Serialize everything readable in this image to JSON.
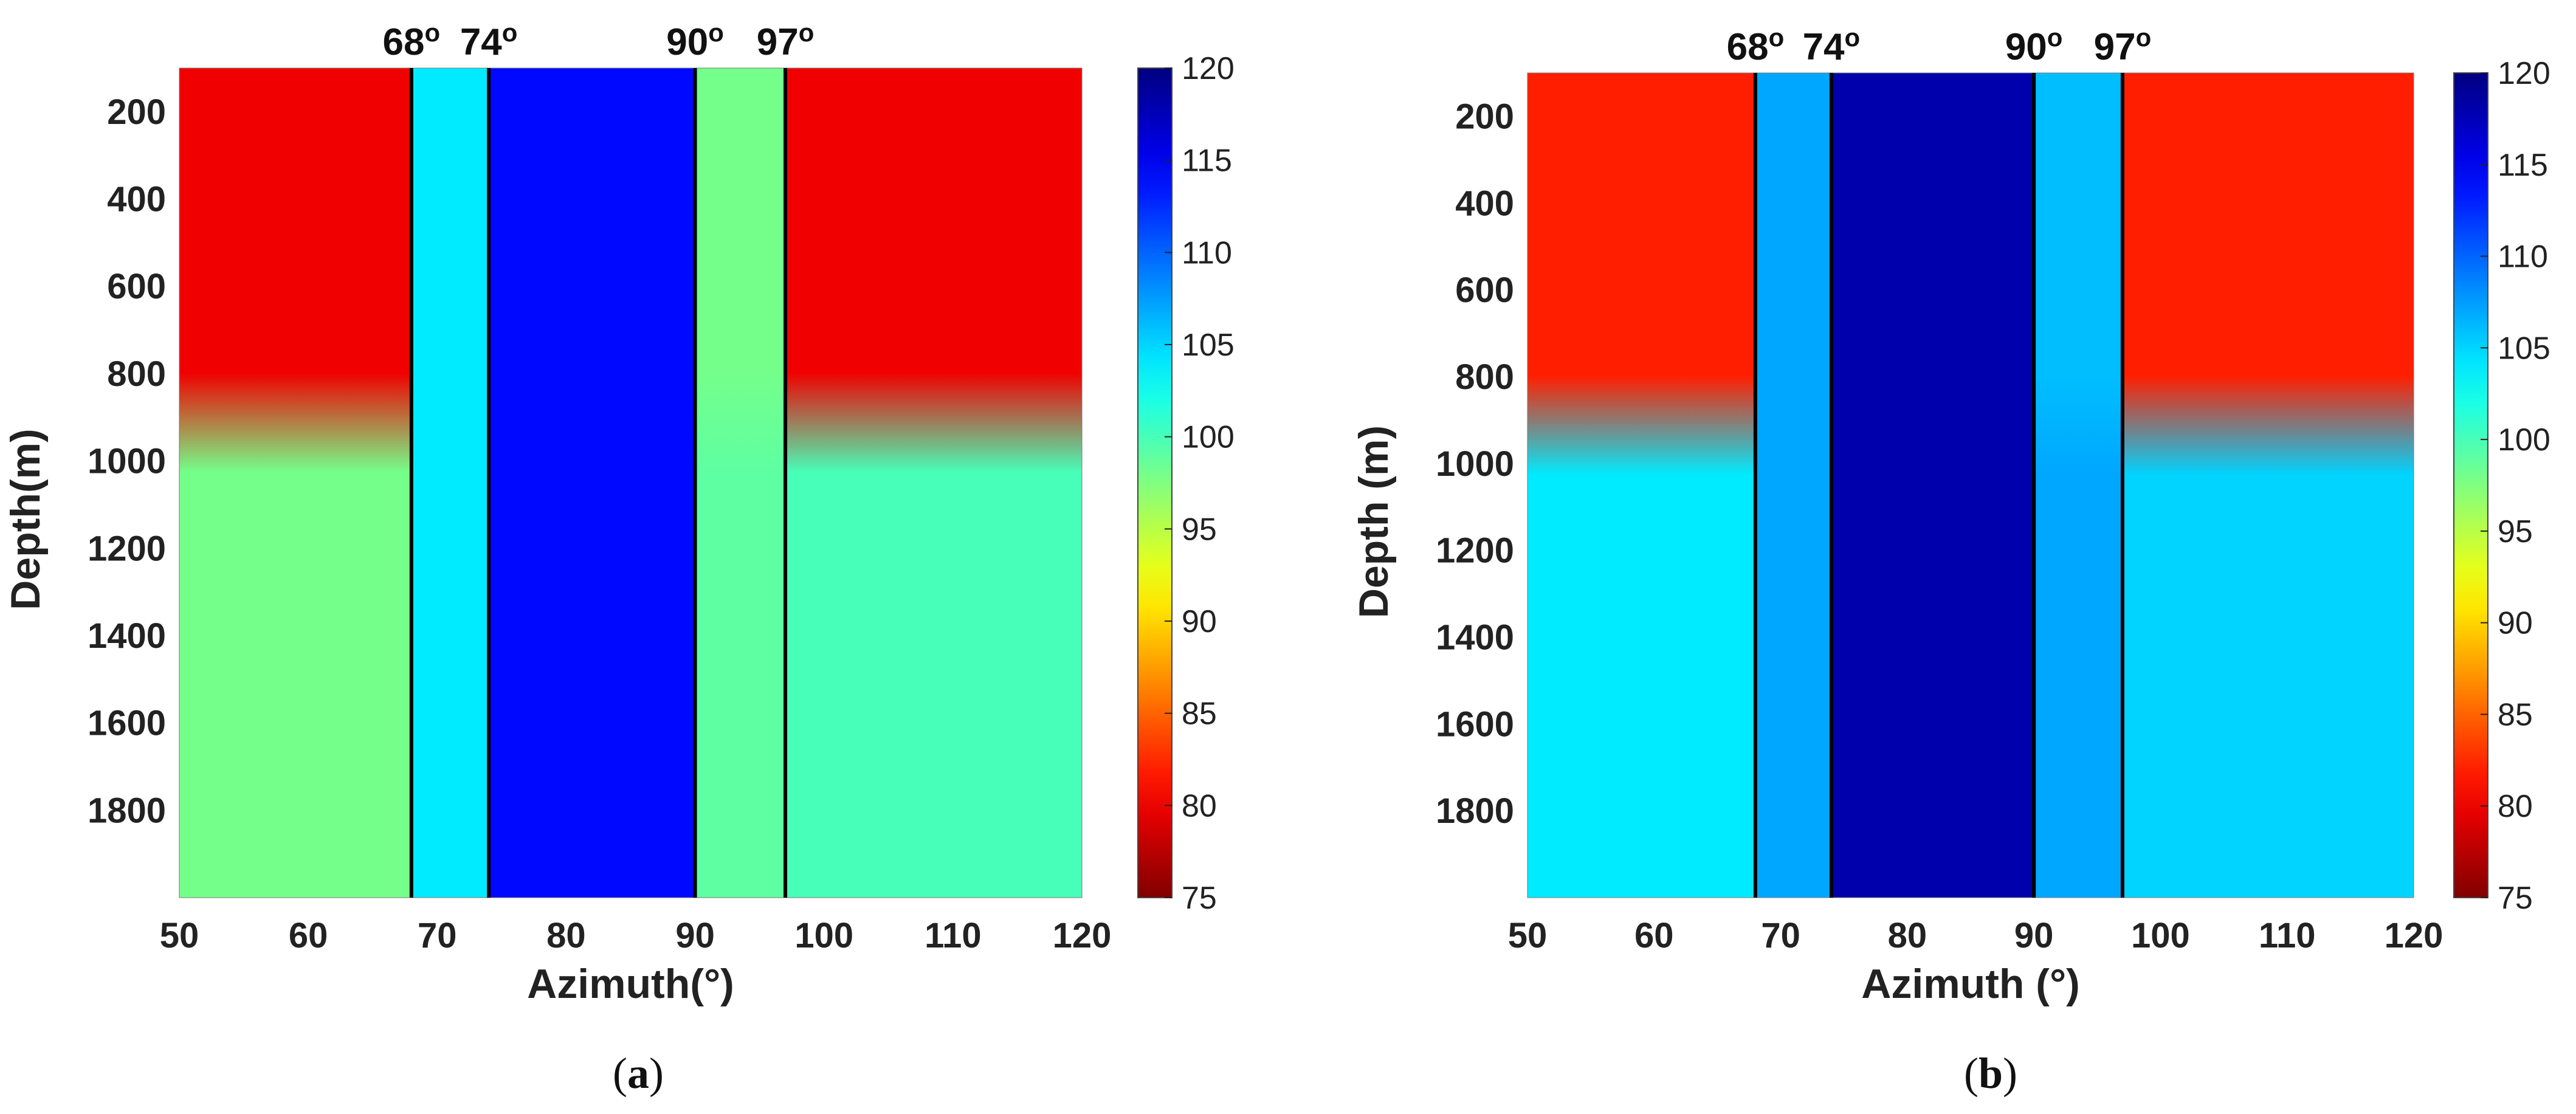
{
  "chart_data": [
    {
      "type": "heatmap",
      "panel": "a",
      "caption": "a",
      "xlabel": "Azimuth(°)",
      "ylabel": "Depth(m)",
      "xlim": [
        50,
        120
      ],
      "ylim": [
        100,
        2000
      ],
      "y_reversed": true,
      "xticks": [
        "50",
        "60",
        "70",
        "80",
        "90",
        "100",
        "110",
        "120"
      ],
      "yticks": [
        "200",
        "400",
        "600",
        "800",
        "1000",
        "1200",
        "1400",
        "1600",
        "1800"
      ],
      "colorbar": {
        "min": 75,
        "max": 120,
        "ticks": [
          "75",
          "80",
          "85",
          "90",
          "95",
          "100",
          "105",
          "110",
          "115",
          "120"
        ]
      },
      "boundaries": [
        {
          "azimuth": 68,
          "label": "68",
          "sup": "o"
        },
        {
          "azimuth": 74,
          "label": "74",
          "sup": "o"
        },
        {
          "azimuth": 90,
          "label": "90",
          "sup": "o"
        },
        {
          "azimuth": 97,
          "label": "97",
          "sup": "o"
        }
      ],
      "regions": [
        {
          "azimuth_range": [
            50,
            68
          ],
          "shallow_value": 80,
          "deep_value": 98
        },
        {
          "azimuth_range": [
            68,
            74
          ],
          "shallow_value": 104,
          "deep_value": 104
        },
        {
          "azimuth_range": [
            74,
            90
          ],
          "shallow_value": 114,
          "deep_value": 114
        },
        {
          "azimuth_range": [
            90,
            97
          ],
          "shallow_value": 98,
          "deep_value": 99
        },
        {
          "azimuth_range": [
            97,
            120
          ],
          "shallow_value": 80,
          "deep_value": 100
        }
      ],
      "transition_depth": 950
    },
    {
      "type": "heatmap",
      "panel": "b",
      "caption": "b",
      "xlabel": "Azimuth (°)",
      "ylabel": "Depth (m)",
      "xlim": [
        50,
        120
      ],
      "ylim": [
        100,
        2000
      ],
      "y_reversed": true,
      "xticks": [
        "50",
        "60",
        "70",
        "80",
        "90",
        "100",
        "110",
        "120"
      ],
      "yticks": [
        "200",
        "400",
        "600",
        "800",
        "1000",
        "1200",
        "1400",
        "1600",
        "1800"
      ],
      "colorbar": {
        "min": 75,
        "max": 120,
        "ticks": [
          "75",
          "80",
          "85",
          "90",
          "95",
          "100",
          "105",
          "110",
          "115",
          "120"
        ]
      },
      "boundaries": [
        {
          "azimuth": 68,
          "label": "68",
          "sup": "o"
        },
        {
          "azimuth": 74,
          "label": "74",
          "sup": "o"
        },
        {
          "azimuth": 90,
          "label": "90",
          "sup": "o"
        },
        {
          "azimuth": 97,
          "label": "97",
          "sup": "o"
        }
      ],
      "regions": [
        {
          "azimuth_range": [
            50,
            68
          ],
          "shallow_value": 82,
          "deep_value": 104
        },
        {
          "azimuth_range": [
            68,
            74
          ],
          "shallow_value": 107,
          "deep_value": 107
        },
        {
          "azimuth_range": [
            74,
            90
          ],
          "shallow_value": 118,
          "deep_value": 118
        },
        {
          "azimuth_range": [
            90,
            97
          ],
          "shallow_value": 106,
          "deep_value": 107
        },
        {
          "azimuth_range": [
            97,
            120
          ],
          "shallow_value": 82,
          "deep_value": 105
        }
      ],
      "transition_depth": 950
    }
  ]
}
